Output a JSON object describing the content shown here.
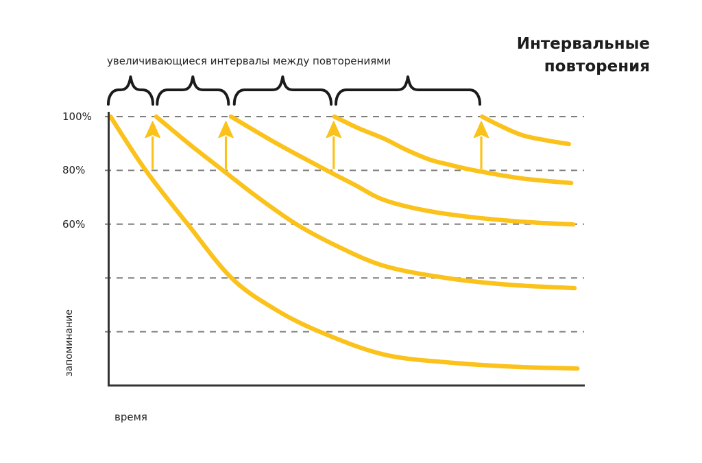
{
  "title": {
    "line1": "Интервальные",
    "line2": "повторения"
  },
  "annotation_label": "увеличивающиеся интервалы между повторениями",
  "y_axis": {
    "title": "запоминание",
    "ticks": [
      {
        "label": "100%",
        "pct": 100
      },
      {
        "label": "80%",
        "pct": 80
      },
      {
        "label": "60%",
        "pct": 60
      }
    ]
  },
  "x_axis": {
    "title": "время"
  },
  "colors": {
    "curve": "#FBC21B",
    "arrow": "#FBC21B",
    "grid": "#7E7E7E",
    "axis": "#333333",
    "brace": "#1B1B1B",
    "text": "#1F1F1F"
  },
  "chart_data": {
    "type": "line",
    "title": "Интервальные повторения",
    "xlabel": "время",
    "ylabel": "запоминание",
    "x_units": "время, условные единицы 0–100",
    "ylim": [
      0,
      100
    ],
    "legend": "none",
    "grid": "dashed horizontal gridlines every 20%, labels shown for 100/80/60",
    "gridlines_pct": [
      100,
      80,
      60,
      40,
      20
    ],
    "series": [
      {
        "name": "forgetting-curve-1",
        "points": [
          [
            0.6,
            100
          ],
          [
            8,
            80
          ],
          [
            16.8,
            60
          ],
          [
            26,
            40
          ],
          [
            35,
            28.5
          ],
          [
            44.5,
            20
          ],
          [
            58,
            11.5
          ],
          [
            72,
            8.5
          ],
          [
            85,
            7
          ],
          [
            98.6,
            6.3
          ]
        ]
      },
      {
        "name": "forgetting-curve-2",
        "points": [
          [
            10.2,
            100
          ],
          [
            17,
            90
          ],
          [
            24.2,
            80
          ],
          [
            31.5,
            70
          ],
          [
            39.6,
            60
          ],
          [
            48,
            52
          ],
          [
            58,
            44.5
          ],
          [
            71,
            40
          ],
          [
            84,
            37.5
          ],
          [
            98,
            36.2
          ]
        ]
      },
      {
        "name": "forgetting-curve-3",
        "points": [
          [
            25.9,
            100
          ],
          [
            35.5,
            90
          ],
          [
            46,
            80
          ],
          [
            52,
            74.5
          ],
          [
            58,
            69
          ],
          [
            67,
            65
          ],
          [
            77,
            62.5
          ],
          [
            88,
            60.8
          ],
          [
            97.7,
            59.9
          ]
        ]
      },
      {
        "name": "forgetting-curve-4",
        "points": [
          [
            47.6,
            100
          ],
          [
            52.5,
            95.8
          ],
          [
            58,
            91.8
          ],
          [
            62.5,
            87.8
          ],
          [
            67.6,
            84
          ],
          [
            72,
            82
          ],
          [
            77,
            80
          ],
          [
            87,
            77
          ],
          [
            97.3,
            75.3
          ]
        ]
      },
      {
        "name": "forgetting-curve-5",
        "points": [
          [
            78.6,
            100
          ],
          [
            82.5,
            96.5
          ],
          [
            87,
            93.1
          ],
          [
            92,
            91.2
          ],
          [
            96.8,
            89.8
          ]
        ]
      }
    ],
    "review_arrows": {
      "meaning": "повторение возвращает запоминание с 80% к 100%",
      "t": [
        9.45,
        24.82,
        47.45,
        78.42
      ],
      "from_pct": 80,
      "to_pct": 98
    },
    "interval_braces_t": [
      [
        0.14,
        9.5
      ],
      [
        10.4,
        25.37
      ],
      [
        26.58,
        46.91
      ],
      [
        47.91,
        78.13
      ]
    ]
  }
}
